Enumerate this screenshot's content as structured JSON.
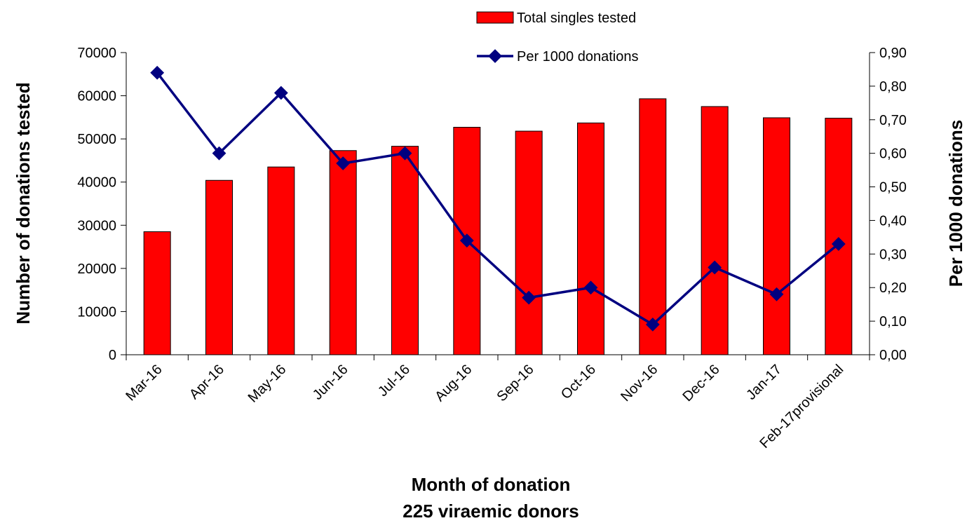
{
  "chart_data": {
    "type": "bar_line",
    "categories": [
      "Mar-16",
      "Apr-16",
      "May-16",
      "Jun-16",
      "Jul-16",
      "Aug-16",
      "Sep-16",
      "Oct-16",
      "Nov-16",
      "Dec-16",
      "Jan-17",
      "Feb-17provisional"
    ],
    "series": [
      {
        "name": "Total singles tested",
        "type": "bar",
        "color": "#ff0000",
        "values": [
          28500,
          40400,
          43500,
          47300,
          48300,
          52700,
          51800,
          53700,
          59300,
          57500,
          54900,
          54800
        ]
      },
      {
        "name": "Per 1000 donations",
        "type": "line",
        "axis": "y2",
        "color": "#000080",
        "values": [
          0.84,
          0.6,
          0.78,
          0.57,
          0.6,
          0.34,
          0.17,
          0.2,
          0.09,
          0.26,
          0.18,
          0.33
        ]
      }
    ],
    "xlabel": [
      "Month of donation",
      "225 viraemic donors"
    ],
    "ylabel": "Number of donations tested",
    "y2label": "Per 1000 donations",
    "ylim": [
      0,
      70000
    ],
    "yticks": [
      0,
      10000,
      20000,
      30000,
      40000,
      50000,
      60000,
      70000
    ],
    "y2lim": [
      0,
      0.9
    ],
    "y2ticks": [
      {
        "value": 0,
        "label": "0,00"
      },
      {
        "value": 0.1,
        "label": "0,10"
      },
      {
        "value": 0.2,
        "label": "0,20"
      },
      {
        "value": 0.3,
        "label": "0,30"
      },
      {
        "value": 0.4,
        "label": "0,40"
      },
      {
        "value": 0.5,
        "label": "0,50"
      },
      {
        "value": 0.6,
        "label": "0,60"
      },
      {
        "value": 0.7,
        "label": "0,70"
      },
      {
        "value": 0.8,
        "label": "0,80"
      },
      {
        "value": 0.9,
        "label": "0,90"
      }
    ],
    "legend": "top"
  }
}
